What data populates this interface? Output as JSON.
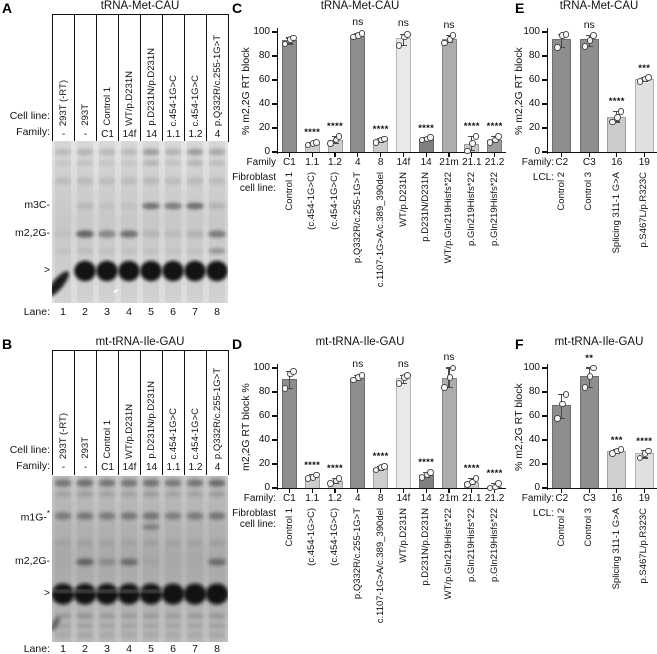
{
  "panels": {
    "A": {
      "letter": "A",
      "title": "tRNA-Met-CAU",
      "cell_line_label": "Cell line:",
      "family_label": "Family:",
      "lanes": [
        {
          "cell_line": "293T (-RT)",
          "family": "-"
        },
        {
          "cell_line": "293T",
          "family": "-"
        },
        {
          "cell_line": "Control 1",
          "family": "C1"
        },
        {
          "cell_line": "WT/p.D231N",
          "family": "14f"
        },
        {
          "cell_line": "p.D231N/p.D231N",
          "family": "14"
        },
        {
          "cell_line": "c.454-1G>C",
          "family": "1.1"
        },
        {
          "cell_line": "c.454-1G>C",
          "family": "1.2"
        },
        {
          "cell_line": "p.Q332R/c.255-1G>T",
          "family": "4"
        }
      ],
      "band_labels": [
        {
          "text": "m3C-"
        },
        {
          "text": "m2,2G-"
        }
      ],
      "arrow_label": ">",
      "lane_label": "Lane:",
      "lane_numbers": [
        "1",
        "2",
        "3",
        "4",
        "5",
        "6",
        "7",
        "8"
      ]
    },
    "B": {
      "letter": "B",
      "title": "mt-tRNA-Ile-GAU",
      "cell_line_label": "Cell line:",
      "family_label": "Family:",
      "lanes": [
        {
          "cell_line": "293T (-RT)",
          "family": "-"
        },
        {
          "cell_line": "293T",
          "family": "-"
        },
        {
          "cell_line": "Control 1",
          "family": "C1"
        },
        {
          "cell_line": "WT/p.D231N",
          "family": "14f"
        },
        {
          "cell_line": "p.D231N/p.D231N",
          "family": "14"
        },
        {
          "cell_line": "c.454-1G>C",
          "family": "1.1"
        },
        {
          "cell_line": "c.454-1G>C",
          "family": "1.2"
        },
        {
          "cell_line": "p.Q332R/c.255-1G>T",
          "family": "4"
        }
      ],
      "band_labels": [
        {
          "text": "m1G-",
          "sup": "*"
        },
        {
          "text": "m2,2G-"
        }
      ],
      "arrow_label": ">",
      "lane_label": "Lane:",
      "lane_numbers": [
        "1",
        "2",
        "3",
        "4",
        "5",
        "6",
        "7",
        "8"
      ]
    }
  },
  "chart_data": [
    {
      "panel": "C",
      "type": "bar",
      "title": "tRNA-Met-CAU",
      "ylabel": "% m2,2G RT block",
      "ylim": [
        0,
        100
      ],
      "yticks": [
        0,
        20,
        40,
        60,
        80,
        100
      ],
      "x_axis_label": "Family",
      "group_label_lines": [
        "Fibroblast",
        "cell line:"
      ],
      "categories": [
        "C1",
        "1.1",
        "1.2",
        "4",
        "8",
        "14f",
        "14",
        "21m",
        "21.1",
        "21.2"
      ],
      "group_names": [
        "Control 1",
        "(c.454-1G>C)",
        "(c.454-1G>C)",
        "p.Q332R/c.255-1G>T",
        "c.1107-1G>A/c.389_390del",
        "WT/p.D231N",
        "p.D231N/D231N",
        "WT/p.Gln219Hisfs*22",
        "p.Gln219Hisfs*22",
        "p.Gln219Hisfs*22"
      ],
      "values": [
        93,
        7,
        10,
        97,
        10,
        95,
        11,
        94,
        7,
        10
      ],
      "points": [
        [
          90,
          94,
          95
        ],
        [
          6,
          7,
          8
        ],
        [
          7,
          10,
          13
        ],
        [
          96,
          97,
          99
        ],
        [
          8,
          10,
          11
        ],
        [
          89,
          96,
          98
        ],
        [
          10,
          11,
          12
        ],
        [
          91,
          94,
          97
        ],
        [
          1,
          7,
          13
        ],
        [
          8,
          10,
          13
        ]
      ],
      "sig": [
        "",
        "****",
        "****",
        "ns",
        "****",
        "ns",
        "****",
        "ns",
        "****",
        "****"
      ],
      "bar_colors": [
        "#8e8e8e",
        "#cdcdcd",
        "#cdcdcd",
        "#8e8e8e",
        "#cdcdcd",
        "#e9e9e9",
        "#808080",
        "#adadad",
        "#c9c9c9",
        "#9c9c9c"
      ]
    },
    {
      "panel": "D",
      "type": "bar",
      "title": "mt-tRNA-Ile-GAU",
      "ylabel": "m2,2G RT block %",
      "ylim": [
        0,
        100
      ],
      "yticks": [
        0,
        20,
        40,
        60,
        80,
        100
      ],
      "x_axis_label": "Family:",
      "group_label_lines": [
        "Fibroblast",
        "cell line:"
      ],
      "categories": [
        "C1",
        "1.1",
        "1.2",
        "4",
        "8",
        "14f",
        "14",
        "21m",
        "21.1",
        "21.2"
      ],
      "group_names": [
        "Control 1",
        "(c.454-1G>C)",
        "(c.454-1G>C)",
        "p.Q332R/c.255-1G>T",
        "c.1107-1G>A/c.389_390del",
        "WT/p.D231N",
        "p.D231N/p.D231N",
        "WT/p.Gln219Hisfs*22",
        "p.Gln219Hisfs*22",
        "p.Gln219Hisfs*22"
      ],
      "values": [
        91,
        9,
        6,
        92,
        17,
        92,
        11,
        92,
        5,
        1
      ],
      "points": [
        [
          83,
          95,
          97
        ],
        [
          8,
          9,
          11
        ],
        [
          4,
          6,
          8
        ],
        [
          90,
          92,
          94
        ],
        [
          15,
          17,
          18
        ],
        [
          87,
          92,
          94
        ],
        [
          9,
          11,
          13
        ],
        [
          84,
          92,
          100
        ],
        [
          3,
          5,
          8
        ],
        [
          0,
          1,
          4
        ]
      ],
      "sig": [
        "",
        "****",
        "****",
        "ns",
        "****",
        "ns",
        "****",
        "ns",
        "****",
        "****"
      ],
      "bar_colors": [
        "#8e8e8e",
        "#cdcdcd",
        "#cdcdcd",
        "#8e8e8e",
        "#cdcdcd",
        "#e9e9e9",
        "#808080",
        "#adadad",
        "#c9c9c9",
        "#9c9c9c"
      ]
    },
    {
      "panel": "E",
      "type": "bar",
      "title": "tRNA-Met-CAU",
      "ylabel": "% m2,2G RT block",
      "ylim": [
        0,
        100
      ],
      "yticks": [
        0,
        20,
        40,
        60,
        80,
        100
      ],
      "x_axis_label": "Family:",
      "group_label_lines": [
        "LCL:"
      ],
      "categories": [
        "C2",
        "C3",
        "16",
        "19"
      ],
      "group_names": [
        "Control 2",
        "Control 3",
        "Splicing 311-1 G>A",
        "p.S467L/p.R323C"
      ],
      "values": [
        94,
        94,
        29,
        61
      ],
      "points": [
        [
          87,
          97,
          98
        ],
        [
          88,
          93,
          97
        ],
        [
          25,
          29,
          34
        ],
        [
          59,
          61,
          62
        ]
      ],
      "sig": [
        "",
        "ns",
        "****",
        "***"
      ],
      "bar_colors": [
        "#8e8e8e",
        "#8e8e8e",
        "#cbcbcb",
        "#e0e0e0"
      ]
    },
    {
      "panel": "F",
      "type": "bar",
      "title": "mt-tRNA-Ile-GAU",
      "ylabel": "% m2,2G RT block",
      "ylim": [
        0,
        100
      ],
      "yticks": [
        0,
        20,
        40,
        60,
        80,
        100
      ],
      "x_axis_label": "Family:",
      "group_label_lines": [
        "LCL:"
      ],
      "categories": [
        "C2",
        "C3",
        "16",
        "19"
      ],
      "group_names": [
        "Control 2",
        "Control 3",
        "Splicing 311-1 G>A",
        "p.S467L/p.R323C"
      ],
      "values": [
        69,
        93,
        31,
        29
      ],
      "points": [
        [
          58,
          70,
          78
        ],
        [
          84,
          93,
          100
        ],
        [
          29,
          31,
          32
        ],
        [
          25,
          29,
          31
        ]
      ],
      "sig": [
        "",
        "**",
        "***",
        "****"
      ],
      "bar_colors": [
        "#8e8e8e",
        "#8e8e8e",
        "#cfcfcf",
        "#e0e0e0"
      ]
    }
  ]
}
